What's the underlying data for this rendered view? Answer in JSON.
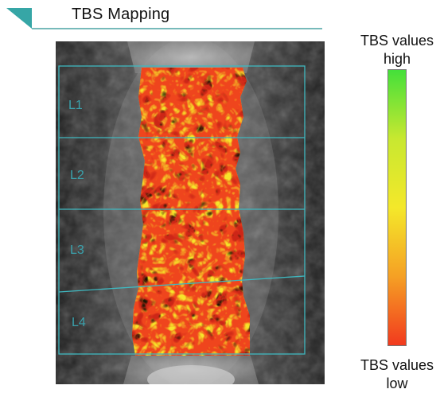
{
  "header": {
    "title": "TBS Mapping",
    "accent_color": "#36a6a6",
    "line_color": "#4aa3a3"
  },
  "scan": {
    "vertebrae": [
      {
        "label": "L1"
      },
      {
        "label": "L2"
      },
      {
        "label": "L3"
      },
      {
        "label": "L4"
      }
    ],
    "roi_color": "#3fb8c0"
  },
  "legend": {
    "top_line1": "TBS values",
    "top_line2": "high",
    "bottom_line1": "TBS values",
    "bottom_line2": "low",
    "gradient": [
      "#44e03a",
      "#c8e830",
      "#f4e82a",
      "#f5a024",
      "#f23a1e"
    ]
  }
}
